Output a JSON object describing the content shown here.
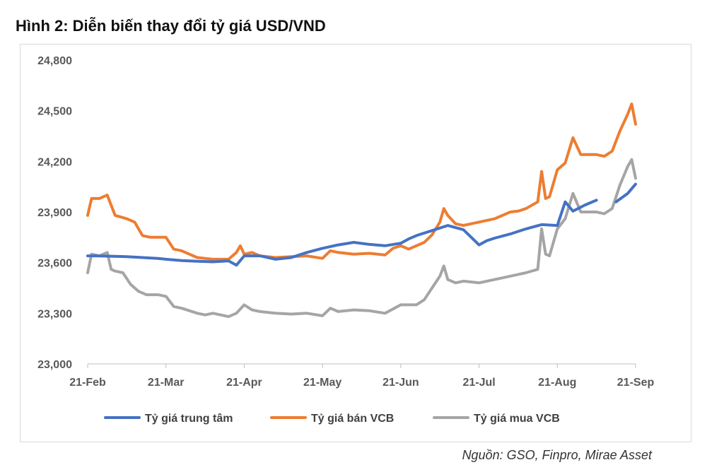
{
  "title": "Hình 2: Diễn biến thay đổi tỷ giá USD/VND",
  "source": "Nguồn: GSO, Finpro, Mirae Asset",
  "chart_data": {
    "type": "line",
    "x_labels": [
      "21-Feb",
      "21-Mar",
      "21-Apr",
      "21-May",
      "21-Jun",
      "21-Jul",
      "21-Aug",
      "21-Sep"
    ],
    "y_ticks": [
      "23,000",
      "23,300",
      "23,600",
      "23,900",
      "24,200",
      "24,500",
      "24,800"
    ],
    "ylim": [
      23000,
      24800
    ],
    "grid": false,
    "legend_position": "bottom",
    "series": [
      {
        "name": "Tỷ giá trung tâm",
        "color": "#4472C4",
        "x": [
          0,
          0.1,
          0.3,
          0.5,
          0.7,
          0.9,
          1,
          1.2,
          1.4,
          1.6,
          1.8,
          1.9,
          2,
          2.1,
          2.2,
          2.4,
          2.6,
          2.8,
          3,
          3.2,
          3.4,
          3.6,
          3.8,
          4,
          4.1,
          4.2,
          4.4,
          4.6,
          4.8,
          5,
          5.1,
          5.2,
          5.4,
          5.6,
          5.8,
          6,
          6.1,
          6.2,
          6.35,
          6.5,
          6.6,
          6.75,
          6.9,
          7
        ],
        "y": [
          23640,
          23640,
          23638,
          23635,
          23630,
          23625,
          23620,
          23612,
          23608,
          23605,
          23610,
          23585,
          23640,
          23640,
          23640,
          23620,
          23630,
          23660,
          23685,
          23705,
          23720,
          23708,
          23700,
          23715,
          23740,
          23760,
          23790,
          23820,
          23795,
          23705,
          23730,
          23745,
          23770,
          23800,
          23825,
          23820,
          23960,
          23905,
          23940,
          23970,
          null,
          23960,
          24010,
          24065
        ]
      },
      {
        "name": "Tỷ giá bán VCB",
        "color": "#ED7D31",
        "x": [
          0,
          0.05,
          0.15,
          0.25,
          0.35,
          0.5,
          0.6,
          0.7,
          0.8,
          1,
          1.1,
          1.2,
          1.4,
          1.6,
          1.8,
          1.9,
          1.95,
          2,
          2.1,
          2.2,
          2.4,
          2.6,
          2.8,
          3,
          3.1,
          3.2,
          3.4,
          3.6,
          3.8,
          3.9,
          4,
          4.1,
          4.2,
          4.3,
          4.4,
          4.5,
          4.55,
          4.6,
          4.7,
          4.8,
          5,
          5.2,
          5.4,
          5.5,
          5.6,
          5.75,
          5.8,
          5.85,
          5.9,
          6,
          6.1,
          6.2,
          6.3,
          6.4,
          6.5,
          6.6,
          6.7,
          6.8,
          6.9,
          6.95,
          7
        ],
        "y": [
          23880,
          23980,
          23980,
          24000,
          23880,
          23860,
          23840,
          23760,
          23750,
          23750,
          23680,
          23670,
          23630,
          23620,
          23620,
          23660,
          23700,
          23650,
          23660,
          23640,
          23630,
          23635,
          23640,
          23625,
          23670,
          23660,
          23650,
          23655,
          23645,
          23685,
          23700,
          23680,
          23700,
          23720,
          23765,
          23840,
          23920,
          23880,
          23830,
          23820,
          23840,
          23860,
          23900,
          23905,
          23920,
          23960,
          24140,
          23980,
          23990,
          24150,
          24190,
          24340,
          24240,
          24240,
          24240,
          24230,
          24260,
          24380,
          24480,
          24540,
          24420
        ]
      },
      {
        "name": "Tỷ giá mua VCB",
        "color": "#A5A5A5",
        "x": [
          0,
          0.05,
          0.15,
          0.25,
          0.3,
          0.35,
          0.45,
          0.55,
          0.65,
          0.75,
          0.9,
          1,
          1.1,
          1.2,
          1.4,
          1.5,
          1.6,
          1.8,
          1.9,
          2,
          2.1,
          2.2,
          2.4,
          2.6,
          2.8,
          3,
          3.1,
          3.2,
          3.4,
          3.6,
          3.8,
          4,
          4.1,
          4.2,
          4.3,
          4.4,
          4.5,
          4.55,
          4.6,
          4.7,
          4.8,
          5,
          5.2,
          5.4,
          5.5,
          5.6,
          5.75,
          5.8,
          5.85,
          5.9,
          6,
          6.1,
          6.2,
          6.3,
          6.4,
          6.5,
          6.6,
          6.7,
          6.8,
          6.9,
          6.95,
          7
        ],
        "y": [
          23540,
          23650,
          23640,
          23660,
          23560,
          23550,
          23540,
          23470,
          23430,
          23410,
          23410,
          23400,
          23340,
          23330,
          23300,
          23290,
          23300,
          23280,
          23300,
          23350,
          23320,
          23310,
          23300,
          23295,
          23300,
          23285,
          23330,
          23310,
          23320,
          23315,
          23300,
          23350,
          23350,
          23350,
          23380,
          23450,
          23520,
          23580,
          23500,
          23480,
          23490,
          23480,
          23500,
          23520,
          23530,
          23540,
          23560,
          23800,
          23650,
          23640,
          23800,
          23860,
          24010,
          23900,
          23900,
          23900,
          23890,
          23920,
          24060,
          24170,
          24210,
          24100
        ]
      }
    ]
  }
}
